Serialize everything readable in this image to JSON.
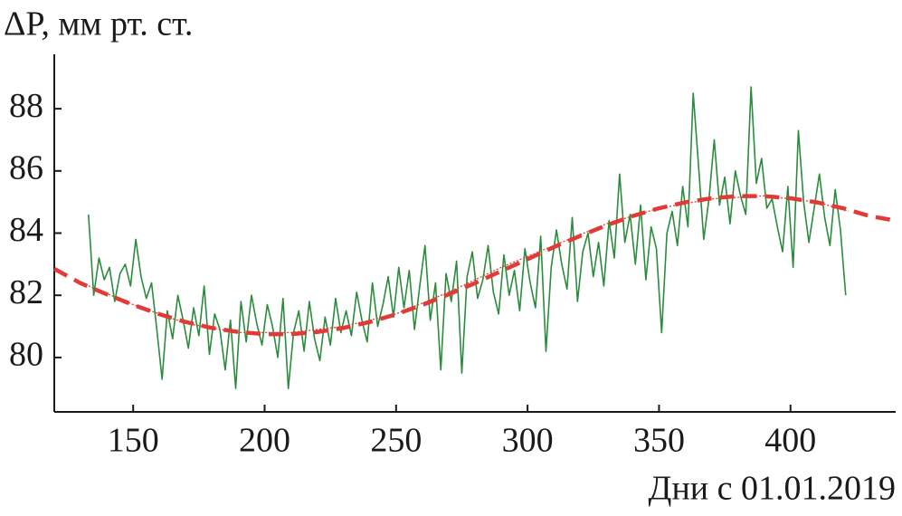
{
  "chart_data": {
    "type": "line",
    "ylabel": "ΔP, мм рт. ст.",
    "xlabel": "Дни с 01.01.2019",
    "xlim": [
      120,
      440
    ],
    "ylim": [
      78.25,
      89.75
    ],
    "xticks": [
      150,
      200,
      250,
      300,
      350,
      400
    ],
    "yticks": [
      80,
      82,
      84,
      86,
      88
    ],
    "grid": false,
    "series": [
      {
        "color": "#2a8c3c",
        "style": "solid",
        "x": [
          133,
          135,
          137,
          139,
          141,
          143,
          145,
          147,
          149,
          151,
          153,
          155,
          157,
          159,
          161,
          163,
          165,
          167,
          169,
          171,
          173,
          175,
          177,
          179,
          181,
          183,
          185,
          187,
          189,
          191,
          193,
          195,
          197,
          199,
          201,
          203,
          205,
          207,
          209,
          211,
          213,
          215,
          217,
          219,
          221,
          223,
          225,
          227,
          229,
          231,
          233,
          235,
          237,
          239,
          241,
          243,
          245,
          247,
          249,
          251,
          253,
          255,
          257,
          259,
          261,
          263,
          265,
          267,
          269,
          271,
          273,
          275,
          277,
          279,
          281,
          283,
          285,
          287,
          289,
          291,
          293,
          295,
          297,
          299,
          301,
          303,
          305,
          307,
          309,
          311,
          313,
          315,
          317,
          319,
          321,
          323,
          325,
          327,
          329,
          331,
          333,
          335,
          337,
          339,
          341,
          343,
          345,
          347,
          349,
          351,
          353,
          355,
          357,
          359,
          361,
          363,
          365,
          367,
          369,
          371,
          373,
          375,
          377,
          379,
          381,
          383,
          385,
          387,
          389,
          391,
          393,
          395,
          397,
          399,
          401,
          403,
          405,
          407,
          409,
          411,
          413,
          415,
          417,
          419,
          421
        ],
        "values": [
          84.6,
          82.0,
          83.2,
          82.5,
          82.9,
          81.8,
          82.7,
          83.0,
          82.3,
          83.8,
          82.6,
          81.9,
          82.4,
          80.9,
          79.3,
          81.5,
          80.6,
          82.0,
          81.2,
          80.3,
          81.6,
          80.7,
          82.3,
          80.1,
          81.4,
          80.9,
          79.6,
          81.2,
          79.0,
          81.8,
          80.5,
          82.0,
          81.1,
          80.4,
          81.7,
          81.0,
          80.0,
          81.9,
          79.0,
          80.8,
          81.5,
          80.2,
          81.8,
          80.6,
          79.9,
          81.3,
          80.4,
          81.9,
          80.8,
          81.5,
          80.7,
          82.1,
          81.2,
          80.5,
          82.4,
          81.0,
          81.7,
          82.6,
          81.3,
          82.9,
          81.6,
          82.8,
          80.9,
          82.3,
          83.6,
          81.2,
          82.4,
          79.6,
          82.7,
          81.8,
          83.1,
          79.5,
          82.6,
          83.4,
          81.9,
          82.5,
          83.6,
          82.1,
          81.4,
          83.3,
          82.0,
          82.8,
          81.5,
          83.5,
          82.4,
          81.6,
          83.9,
          80.2,
          82.9,
          84.1,
          83.0,
          82.2,
          84.5,
          81.8,
          83.4,
          84.0,
          82.6,
          83.7,
          82.3,
          84.4,
          83.2,
          85.9,
          83.7,
          84.6,
          83.0,
          84.9,
          82.5,
          84.2,
          83.5,
          80.8,
          84.0,
          84.7,
          83.6,
          85.5,
          84.2,
          88.5,
          86.2,
          83.8,
          85.1,
          87.0,
          84.9,
          85.8,
          84.3,
          86.0,
          85.2,
          84.6,
          88.7,
          85.6,
          86.4,
          84.8,
          85.1,
          84.2,
          83.4,
          85.5,
          82.9,
          87.3,
          85.0,
          83.7,
          84.8,
          85.9,
          84.5,
          83.6,
          85.4,
          84.1,
          82.0
        ]
      },
      {
        "color": "#e23a36",
        "style": "dashed",
        "x": [
          120,
          130,
          140,
          150,
          160,
          170,
          180,
          190,
          200,
          210,
          220,
          230,
          240,
          250,
          260,
          270,
          280,
          290,
          300,
          310,
          320,
          330,
          340,
          350,
          360,
          370,
          380,
          390,
          400,
          410,
          420,
          430,
          440
        ],
        "values": [
          82.85,
          82.39,
          82.03,
          81.69,
          81.39,
          81.14,
          80.95,
          80.82,
          80.75,
          80.75,
          80.82,
          80.95,
          81.14,
          81.39,
          81.69,
          82.03,
          82.39,
          82.78,
          83.16,
          83.55,
          83.91,
          84.25,
          84.55,
          84.8,
          84.99,
          85.12,
          85.19,
          85.19,
          85.12,
          84.99,
          84.8,
          84.55,
          84.4
        ]
      },
      {
        "color": "#e23a36",
        "style": "dotted",
        "x": [
          133,
          150,
          170,
          190,
          210,
          230,
          250,
          270,
          290,
          310,
          330,
          350,
          370,
          390,
          410,
          422
        ],
        "values": [
          82.3,
          81.7,
          81.1,
          80.8,
          80.8,
          81.0,
          81.4,
          82.1,
          82.9,
          83.6,
          84.3,
          84.8,
          85.1,
          85.2,
          85.0,
          84.7
        ]
      }
    ]
  }
}
